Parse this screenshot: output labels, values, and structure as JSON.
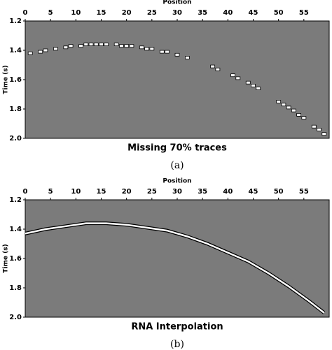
{
  "chart_data": [
    {
      "type": "scatter",
      "x_label": "Position",
      "y_label": "Time (s)",
      "caption": "Missing 70% traces",
      "label": "(a)",
      "background": "#7b7b7b",
      "color": "#ffffff",
      "xlim": [
        0,
        60
      ],
      "xticks": [
        0,
        5,
        10,
        15,
        20,
        25,
        30,
        35,
        40,
        45,
        50,
        55
      ],
      "ylim": [
        1.2,
        2.0
      ],
      "yticks": [
        1.2,
        1.4,
        1.6,
        1.8,
        {
          "value": 2,
          "label": "2.0"
        }
      ],
      "x": [
        1,
        3,
        4,
        6,
        8,
        9,
        11,
        12,
        13,
        14,
        15,
        16,
        18,
        19,
        20,
        21,
        23,
        24,
        25,
        27,
        28,
        30,
        32,
        37,
        38,
        41,
        42,
        44,
        45,
        46,
        50,
        51,
        52,
        53,
        54,
        55,
        57,
        58,
        59
      ],
      "values": [
        1.42,
        1.41,
        1.4,
        1.39,
        1.38,
        1.37,
        1.37,
        1.36,
        1.36,
        1.36,
        1.36,
        1.36,
        1.36,
        1.37,
        1.37,
        1.37,
        1.38,
        1.39,
        1.39,
        1.41,
        1.41,
        1.43,
        1.45,
        1.51,
        1.53,
        1.57,
        1.59,
        1.62,
        1.64,
        1.66,
        1.75,
        1.77,
        1.79,
        1.81,
        1.84,
        1.86,
        1.92,
        1.94,
        1.97
      ]
    },
    {
      "type": "line",
      "x_label": "Position",
      "y_label": "Time (s)",
      "caption": "RNA Interpolation",
      "label": "(b)",
      "background": "#7b7b7b",
      "color": "#ffffff",
      "xlim": [
        0,
        60
      ],
      "xticks": [
        0,
        5,
        10,
        15,
        20,
        25,
        30,
        35,
        40,
        45,
        50,
        55
      ],
      "ylim": [
        1.2,
        2.0
      ],
      "yticks": [
        1.2,
        1.4,
        1.6,
        1.8,
        {
          "value": 2,
          "label": "2.0"
        }
      ],
      "x": [
        0,
        4,
        8,
        12,
        16,
        20,
        24,
        28,
        32,
        36,
        40,
        44,
        48,
        52,
        56,
        59
      ],
      "values": [
        1.43,
        1.4,
        1.38,
        1.36,
        1.36,
        1.37,
        1.39,
        1.41,
        1.45,
        1.5,
        1.56,
        1.62,
        1.7,
        1.79,
        1.89,
        1.97
      ]
    }
  ]
}
